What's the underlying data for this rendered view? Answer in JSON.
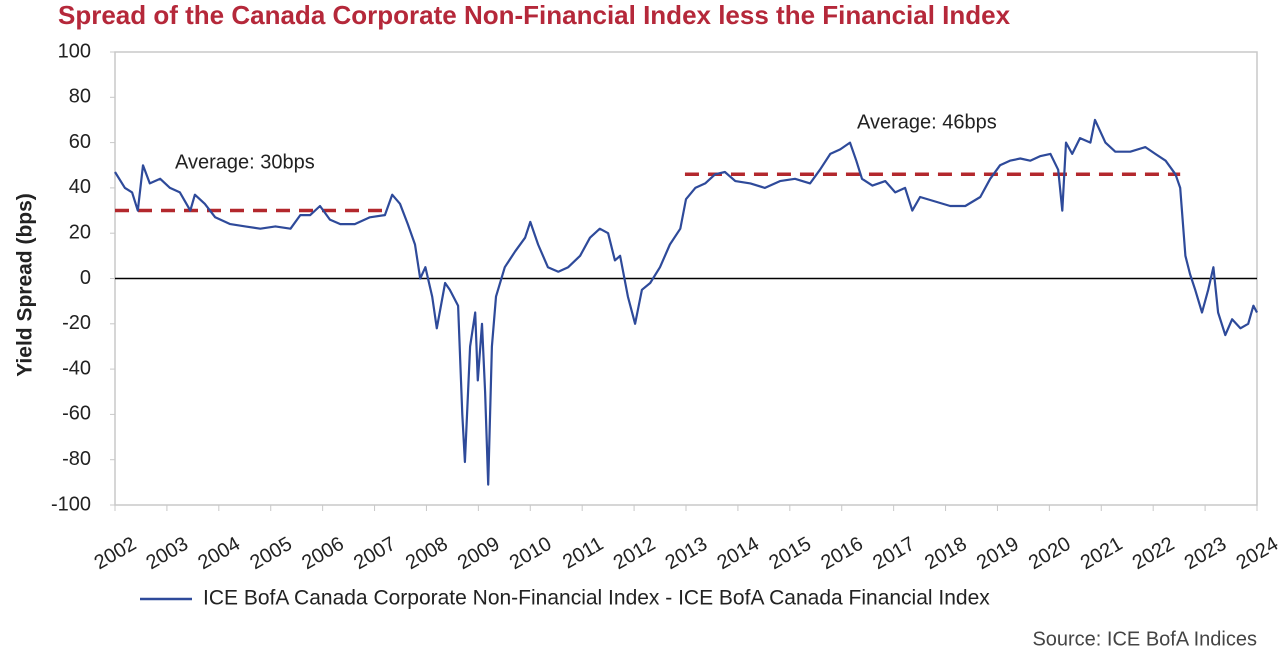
{
  "chart_data": {
    "type": "line",
    "title": "Spread of the Canada Corporate Non-Financial Index less the Financial Index",
    "ylabel": "Yield Spread (bps)",
    "source": "Source: ICE BofA Indices",
    "xlim": [
      2002,
      2024
    ],
    "xticks": [
      2002,
      2003,
      2004,
      2005,
      2006,
      2007,
      2008,
      2009,
      2010,
      2011,
      2012,
      2013,
      2014,
      2015,
      2016,
      2017,
      2018,
      2019,
      2020,
      2021,
      2022,
      2023,
      2024
    ],
    "ylim": [
      -100,
      100
    ],
    "yticks": [
      -100,
      -80,
      -60,
      -40,
      -20,
      0,
      20,
      40,
      60,
      80,
      100
    ],
    "series": [
      {
        "name": "ICE BofA Canada Corporate Non-Financial Index - ICE BofA Canada Financial Index",
        "color": "#2e4a9a",
        "x": [
          2002.0,
          2002.19,
          2002.33,
          2002.44,
          2002.54,
          2002.67,
          2002.87,
          2003.06,
          2003.25,
          2003.45,
          2003.54,
          2003.73,
          2003.93,
          2004.22,
          2004.51,
          2004.8,
          2005.09,
          2005.38,
          2005.57,
          2005.76,
          2005.95,
          2006.14,
          2006.34,
          2006.62,
          2006.91,
          2007.2,
          2007.34,
          2007.49,
          2007.64,
          2007.78,
          2007.88,
          2007.98,
          2008.11,
          2008.2,
          2008.36,
          2008.45,
          2008.61,
          2008.69,
          2008.74,
          2008.84,
          2008.94,
          2008.99,
          2009.07,
          2009.13,
          2009.19,
          2009.26,
          2009.34,
          2009.51,
          2009.71,
          2009.9,
          2010.0,
          2010.15,
          2010.34,
          2010.54,
          2010.73,
          2010.96,
          2011.15,
          2011.34,
          2011.5,
          2011.63,
          2011.73,
          2011.88,
          2012.02,
          2012.15,
          2012.31,
          2012.5,
          2012.69,
          2012.89,
          2013.0,
          2013.18,
          2013.37,
          2013.56,
          2013.75,
          2013.95,
          2014.24,
          2014.52,
          2014.81,
          2015.1,
          2015.39,
          2015.58,
          2015.78,
          2015.97,
          2016.16,
          2016.28,
          2016.39,
          2016.59,
          2016.84,
          2017.03,
          2017.22,
          2017.36,
          2017.51,
          2017.8,
          2018.09,
          2018.38,
          2018.67,
          2018.86,
          2019.05,
          2019.24,
          2019.44,
          2019.63,
          2019.82,
          2020.02,
          2020.17,
          2020.25,
          2020.32,
          2020.44,
          2020.59,
          2020.79,
          2020.88,
          2021.08,
          2021.27,
          2021.56,
          2021.85,
          2022.04,
          2022.24,
          2022.43,
          2022.52,
          2022.62,
          2022.71,
          2022.81,
          2022.94,
          2023.06,
          2023.16,
          2023.25,
          2023.39,
          2023.52,
          2023.68,
          2023.83,
          2023.93,
          2024.0
        ],
        "values": [
          47,
          40,
          38,
          30,
          50,
          42,
          44,
          40,
          38,
          30,
          37,
          33,
          27,
          24,
          23,
          22,
          23,
          22,
          28,
          28,
          32,
          26,
          24,
          24,
          27,
          28,
          37,
          33,
          24,
          15,
          0,
          5,
          -8,
          -22,
          -2,
          -5,
          -12,
          -60,
          -81,
          -30,
          -15,
          -45,
          -20,
          -50,
          -91,
          -30,
          -8,
          5,
          12,
          18,
          25,
          15,
          5,
          3,
          5,
          10,
          18,
          22,
          20,
          8,
          10,
          -8,
          -20,
          -5,
          -2,
          5,
          15,
          22,
          35,
          40,
          42,
          46,
          47,
          43,
          42,
          40,
          43,
          44,
          42,
          48,
          55,
          57,
          60,
          52,
          44,
          41,
          43,
          38,
          40,
          30,
          36,
          34,
          32,
          32,
          36,
          44,
          50,
          52,
          53,
          52,
          54,
          55,
          48,
          30,
          60,
          55,
          62,
          60,
          70,
          60,
          56,
          56,
          58,
          55,
          52,
          46,
          40,
          10,
          2,
          -5,
          -15,
          -5,
          5,
          -15,
          -25,
          -18,
          -22,
          -20,
          -12,
          -15
        ]
      }
    ],
    "reference_lines": [
      {
        "label": "Average: 30bps",
        "value": 30,
        "x": [
          2002,
          2007.2
        ],
        "color": "#b3282d"
      },
      {
        "label": "Average: 46bps",
        "value": 46,
        "x": [
          2012.98,
          2022.52
        ],
        "color": "#b3282d"
      }
    ]
  }
}
